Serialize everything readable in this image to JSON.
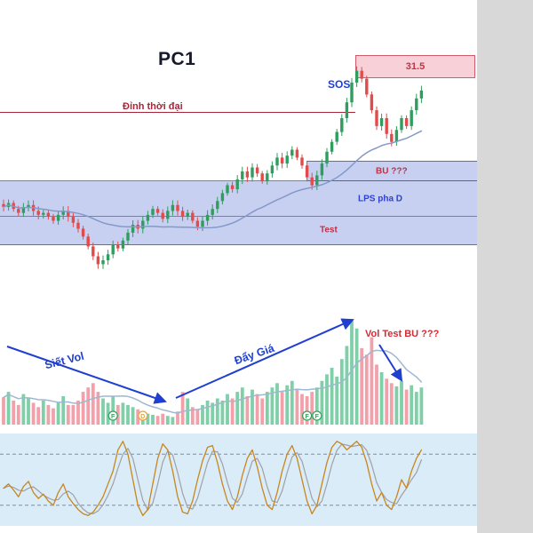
{
  "header": {
    "title": "PC1"
  },
  "annotations": {
    "resistance_box_label": "31.5",
    "sos_label": "SOS",
    "peak_line_label": "Đỉnh thời đại",
    "band_bu_label": "BU ???",
    "band_lps_label": "LPS pha D",
    "band_test_label": "Test",
    "vol_squeeze_label": "Siết Vol",
    "push_price_label": "Đẩy Giá",
    "vol_test_label": "Vol Test BU ???",
    "arrows": [
      {
        "from": [
          8,
          390
        ],
        "to": [
          186,
          452
        ]
      },
      {
        "from": [
          198,
          448
        ],
        "to": [
          397,
          360
        ]
      },
      {
        "from": [
          427,
          388
        ],
        "to": [
          452,
          428
        ]
      }
    ]
  },
  "colors": {
    "candle_up": "#2e9d5e",
    "candle_down": "#e14b4b",
    "vol_up": "#7fd0a8",
    "vol_down": "#f2a1ab",
    "price_ma": "#8399c9",
    "vol_ma": "#9fb8cf",
    "osc_main": "#c9861c",
    "osc_signal": "#a0a0a5",
    "annotation_blue": "#1e3fd0",
    "annotation_red": "#c03049",
    "zone_fill": "#8596e0",
    "resistance_fill": "#f6c6ce"
  },
  "chart_data": {
    "type": "candlestick",
    "title": "PC1",
    "xlabel": "",
    "ylabel": "",
    "legend": "none",
    "grid": false,
    "panels": [
      "price",
      "volume",
      "oscillator"
    ],
    "price": {
      "closes": [
        24.3,
        24.5,
        24.2,
        24.0,
        24.3,
        24.4,
        24.1,
        23.9,
        24.0,
        23.8,
        23.6,
        23.9,
        24.1,
        23.8,
        23.5,
        23.2,
        22.8,
        22.3,
        21.8,
        21.4,
        21.6,
        21.9,
        22.4,
        22.2,
        22.6,
        23.0,
        23.4,
        23.2,
        23.6,
        23.9,
        24.2,
        24.0,
        23.7,
        24.1,
        24.4,
        24.1,
        23.8,
        24.0,
        23.6,
        23.3,
        23.6,
        23.9,
        24.2,
        24.6,
        25.0,
        25.4,
        25.2,
        25.7,
        26.1,
        25.8,
        26.3,
        26.0,
        25.6,
        26.0,
        26.4,
        26.8,
        26.5,
        26.9,
        27.2,
        26.8,
        26.4,
        25.8,
        25.4,
        25.9,
        26.5,
        27.1,
        27.6,
        28.1,
        28.8,
        29.6,
        30.6,
        31.2,
        30.8,
        30.0,
        29.2,
        28.4,
        28.8,
        28.0,
        27.6,
        28.2,
        28.8,
        28.4,
        29.2,
        29.8,
        30.2
      ],
      "ma_period": 30,
      "levels": {
        "resistance_zone": {
          "label": "31.5",
          "range": [
            30.9,
            32.0
          ],
          "start_index": 71
        },
        "peak_line": {
          "label": "Đỉnh thời đại",
          "price": 29.1,
          "end_index": 71
        },
        "bands": [
          {
            "label": "BU ???",
            "range": [
              25.7,
              26.6
            ],
            "start_index": 61
          },
          {
            "label": "LPS pha D",
            "range": [
              23.9,
              25.65
            ],
            "start_index": 0
          },
          {
            "label": "Test",
            "range": [
              22.4,
              23.85
            ],
            "start_index": 0
          }
        ]
      }
    },
    "volume": {
      "values": [
        25,
        30,
        22,
        18,
        28,
        24,
        20,
        16,
        22,
        18,
        15,
        20,
        26,
        18,
        18,
        22,
        30,
        34,
        38,
        30,
        24,
        20,
        26,
        18,
        20,
        18,
        16,
        14,
        12,
        10,
        9,
        8,
        10,
        8,
        7,
        12,
        30,
        24,
        16,
        14,
        18,
        22,
        20,
        24,
        22,
        28,
        24,
        30,
        34,
        26,
        32,
        28,
        24,
        30,
        34,
        38,
        30,
        36,
        40,
        32,
        28,
        26,
        30,
        34,
        40,
        46,
        52,
        44,
        60,
        72,
        95,
        88,
        70,
        64,
        80,
        55,
        48,
        42,
        38,
        35,
        40,
        32,
        36,
        30,
        34
      ],
      "ma_period": 10,
      "markers": [
        {
          "index": 22,
          "label": "F",
          "color": "#3aa25f"
        },
        {
          "index": 28,
          "label": "D",
          "color": "#e8a33d"
        },
        {
          "index": 61,
          "label": "F",
          "color": "#3aa25f"
        },
        {
          "index": 63,
          "label": "F",
          "color": "#3aa25f"
        }
      ]
    },
    "oscillator": {
      "values": [
        40,
        45,
        38,
        30,
        42,
        48,
        35,
        28,
        33,
        25,
        20,
        35,
        45,
        30,
        22,
        15,
        10,
        8,
        12,
        20,
        30,
        45,
        60,
        85,
        95,
        80,
        50,
        20,
        8,
        15,
        45,
        75,
        92,
        85,
        60,
        30,
        12,
        10,
        25,
        50,
        72,
        88,
        90,
        70,
        45,
        25,
        15,
        30,
        55,
        75,
        85,
        65,
        40,
        20,
        15,
        35,
        60,
        80,
        90,
        75,
        50,
        25,
        10,
        20,
        45,
        70,
        88,
        95,
        92,
        85,
        90,
        95,
        88,
        70,
        45,
        25,
        35,
        20,
        15,
        30,
        50,
        40,
        60,
        75,
        85
      ],
      "signal_period": 3,
      "levels": [
        80,
        20
      ]
    }
  }
}
